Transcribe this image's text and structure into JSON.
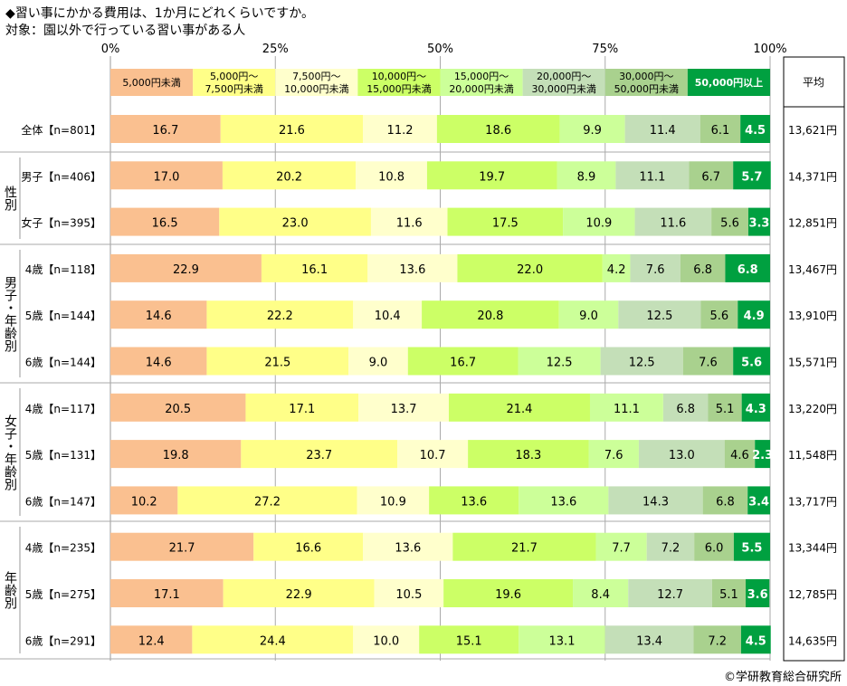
{
  "title": "◆習い事にかかる費用は、1か月にどれくらいですか。",
  "subtitle": "対象：園以外で行っている習い事がある人",
  "credit": "©学研教育総合研究所",
  "average_header": "平均",
  "chart_data": {
    "type": "bar",
    "orientation": "horizontal",
    "stacked": "100%",
    "xlim": [
      0,
      100
    ],
    "x_ticks": [
      "0%",
      "25%",
      "50%",
      "75%",
      "100%"
    ],
    "grid": true,
    "legend_position": "top",
    "series": [
      {
        "name": "5,000円未満",
        "color": "#FAC090"
      },
      {
        "name": "5,000円～\n7,500円未満",
        "color": "#FFFF88"
      },
      {
        "name": "7,500円～\n10,000円未満",
        "color": "#FFFFCC"
      },
      {
        "name": "10,000円～\n15,000円未満",
        "color": "#CCFF66"
      },
      {
        "name": "15,000円～\n20,000円未満",
        "color": "#CCFF99"
      },
      {
        "name": "20,000円～\n30,000円未満",
        "color": "#C4DFB8"
      },
      {
        "name": "30,000円～\n50,000円未満",
        "color": "#A9D18E"
      },
      {
        "name": "50,000円以上",
        "color": "#00A040"
      }
    ],
    "groups": [
      {
        "label": "",
        "rows": [
          0
        ]
      },
      {
        "label": "性別",
        "rows": [
          1,
          2
        ]
      },
      {
        "label": "男子・年齢別",
        "rows": [
          3,
          4,
          5
        ]
      },
      {
        "label": "女子・年齢別",
        "rows": [
          6,
          7,
          8
        ]
      },
      {
        "label": "年齢別",
        "rows": [
          9,
          10,
          11
        ]
      }
    ],
    "rows": [
      {
        "label": "全体【n=801】",
        "values": [
          16.7,
          21.6,
          11.2,
          18.6,
          9.9,
          11.4,
          6.1,
          4.5
        ],
        "average": "13,621円"
      },
      {
        "label": "男子【n=406】",
        "values": [
          17.0,
          20.2,
          10.8,
          19.7,
          8.9,
          11.1,
          6.7,
          5.7
        ],
        "average": "14,371円"
      },
      {
        "label": "女子【n=395】",
        "values": [
          16.5,
          23.0,
          11.6,
          17.5,
          10.9,
          11.6,
          5.6,
          3.3
        ],
        "average": "12,851円"
      },
      {
        "label": "4歳【n=118】",
        "values": [
          22.9,
          16.1,
          13.6,
          22.0,
          4.2,
          7.6,
          6.8,
          6.8
        ],
        "average": "13,467円"
      },
      {
        "label": "5歳【n=144】",
        "values": [
          14.6,
          22.2,
          10.4,
          20.8,
          9.0,
          12.5,
          5.6,
          4.9
        ],
        "average": "13,910円"
      },
      {
        "label": "6歳【n=144】",
        "values": [
          14.6,
          21.5,
          9.0,
          16.7,
          12.5,
          12.5,
          7.6,
          5.6
        ],
        "average": "15,571円"
      },
      {
        "label": "4歳【n=117】",
        "values": [
          20.5,
          17.1,
          13.7,
          21.4,
          11.1,
          6.8,
          5.1,
          4.3
        ],
        "average": "13,220円"
      },
      {
        "label": "5歳【n=131】",
        "values": [
          19.8,
          23.7,
          10.7,
          18.3,
          7.6,
          13.0,
          4.6,
          2.3
        ],
        "average": "11,548円"
      },
      {
        "label": "6歳【n=147】",
        "values": [
          10.2,
          27.2,
          10.9,
          13.6,
          13.6,
          14.3,
          6.8,
          3.4
        ],
        "average": "13,717円"
      },
      {
        "label": "4歳【n=235】",
        "values": [
          21.7,
          16.6,
          13.6,
          21.7,
          7.7,
          7.2,
          6.0,
          5.5
        ],
        "average": "13,344円"
      },
      {
        "label": "5歳【n=275】",
        "values": [
          17.1,
          22.9,
          10.5,
          19.6,
          8.4,
          12.7,
          5.1,
          3.6
        ],
        "average": "12,785円"
      },
      {
        "label": "6歳【n=291】",
        "values": [
          12.4,
          24.4,
          10.0,
          15.1,
          13.1,
          13.4,
          7.2,
          4.5
        ],
        "average": "14,635円"
      }
    ]
  }
}
